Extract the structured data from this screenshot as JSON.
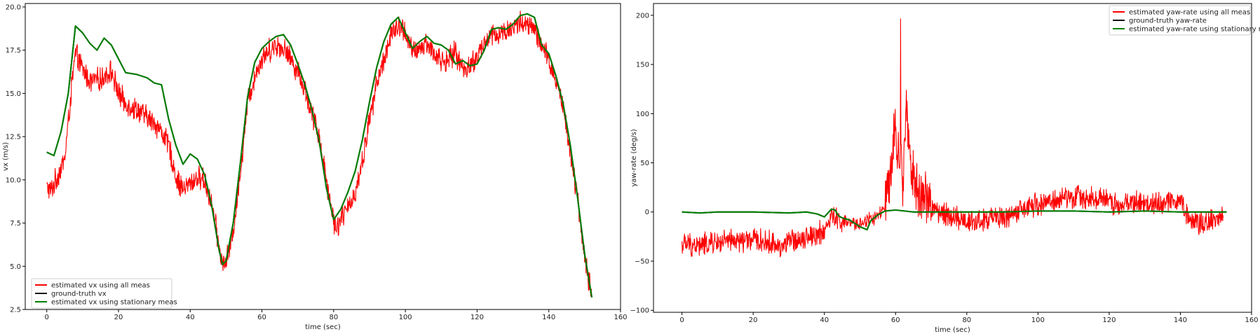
{
  "chart_data": [
    {
      "type": "line",
      "xlabel": "time (sec)",
      "ylabel": "vx (m/s)",
      "xlim": [
        -6,
        160
      ],
      "ylim": [
        2.5,
        20.2
      ],
      "xticks": [
        0,
        20,
        40,
        60,
        80,
        100,
        120,
        140,
        160
      ],
      "yticks": [
        2.5,
        5.0,
        7.5,
        10.0,
        12.5,
        15.0,
        17.5,
        20.0
      ],
      "ytick_labels": [
        "2.5",
        "5.0",
        "7.5",
        "10.0",
        "12.5",
        "15.0",
        "17.5",
        "20.0"
      ],
      "grid": false,
      "legend_position": "lower-left",
      "series": [
        {
          "name": "estimated vx using all meas",
          "color": "#ff0000",
          "noise": 0.8,
          "x": [
            0,
            1,
            3,
            5,
            7,
            8,
            10,
            12,
            15,
            18,
            20,
            22,
            25,
            28,
            30,
            32,
            34,
            36,
            38,
            40,
            42,
            44,
            46,
            48,
            49,
            50,
            52,
            54,
            56,
            58,
            60,
            62,
            64,
            66,
            68,
            70,
            72,
            74,
            76,
            78,
            80,
            81,
            82,
            84,
            86,
            88,
            90,
            92,
            94,
            96,
            98,
            100,
            102,
            104,
            106,
            108,
            110,
            112,
            114,
            116,
            118,
            120,
            122,
            124,
            126,
            128,
            130,
            132,
            134,
            136,
            138,
            140,
            142,
            144,
            146,
            148,
            150,
            152
          ],
          "y": [
            9.6,
            9.3,
            10.2,
            11.2,
            15.5,
            17.3,
            16.4,
            15.7,
            15.8,
            16.3,
            15.0,
            14.4,
            14.1,
            13.6,
            13.3,
            12.8,
            12.0,
            10.2,
            9.4,
            9.8,
            10.1,
            10.0,
            8.6,
            6.2,
            5.1,
            5.2,
            7.0,
            10.5,
            14.5,
            16.0,
            17.0,
            17.5,
            17.8,
            17.6,
            17.0,
            16.3,
            15.2,
            13.8,
            12.5,
            10.0,
            7.6,
            7.3,
            7.8,
            8.3,
            9.3,
            11.0,
            13.5,
            15.5,
            17.0,
            18.4,
            18.8,
            18.6,
            17.3,
            17.6,
            17.9,
            17.3,
            16.9,
            16.9,
            17.4,
            16.4,
            16.6,
            17.1,
            17.9,
            18.4,
            18.4,
            18.6,
            18.8,
            19.1,
            18.9,
            18.7,
            17.7,
            16.9,
            15.8,
            14.2,
            11.8,
            8.9,
            5.5,
            3.2
          ]
        },
        {
          "name": "ground-truth vx",
          "color": "#111111",
          "noise": 0,
          "x": [
            0,
            2,
            4,
            6,
            8,
            10,
            12,
            14,
            16,
            18,
            20,
            22,
            25,
            28,
            30,
            32,
            34,
            36,
            38,
            40,
            42,
            44,
            46,
            48,
            49,
            50,
            52,
            54,
            56,
            58,
            60,
            62,
            64,
            66,
            68,
            70,
            72,
            74,
            76,
            78,
            80,
            82,
            84,
            86,
            88,
            90,
            92,
            94,
            96,
            98,
            100,
            102,
            104,
            106,
            108,
            110,
            112,
            114,
            116,
            118,
            120,
            122,
            124,
            126,
            128,
            130,
            132,
            134,
            136,
            138,
            140,
            142,
            144,
            146,
            148,
            150,
            152
          ],
          "y": [
            11.6,
            11.4,
            12.8,
            15.0,
            18.9,
            18.5,
            17.9,
            17.5,
            18.2,
            17.8,
            17.0,
            16.2,
            16.1,
            15.9,
            15.6,
            15.5,
            13.5,
            12.0,
            10.9,
            11.5,
            11.2,
            10.3,
            8.5,
            6.0,
            5.1,
            5.3,
            7.5,
            11.0,
            14.8,
            16.8,
            17.6,
            18.0,
            18.3,
            18.4,
            17.8,
            16.7,
            15.5,
            14.0,
            12.2,
            9.5,
            7.7,
            8.3,
            9.3,
            10.5,
            12.3,
            14.5,
            16.5,
            18.0,
            19.0,
            19.4,
            18.5,
            17.6,
            18.0,
            18.3,
            17.9,
            17.8,
            17.5,
            16.7,
            16.9,
            16.6,
            16.7,
            17.5,
            18.7,
            18.8,
            18.7,
            19.0,
            19.5,
            19.6,
            19.4,
            17.8,
            17.3,
            16.0,
            14.4,
            12.0,
            9.0,
            5.7,
            3.2
          ]
        },
        {
          "name": "estimated vx using stationary meas",
          "color": "#008000",
          "noise": 0,
          "x": [
            0,
            2,
            4,
            6,
            8,
            10,
            12,
            14,
            16,
            18,
            20,
            22,
            25,
            28,
            30,
            32,
            34,
            36,
            38,
            40,
            42,
            44,
            46,
            48,
            49,
            50,
            52,
            54,
            56,
            58,
            60,
            62,
            64,
            66,
            68,
            70,
            72,
            74,
            76,
            78,
            80,
            82,
            84,
            86,
            88,
            90,
            92,
            94,
            96,
            98,
            100,
            102,
            104,
            106,
            108,
            110,
            112,
            114,
            116,
            118,
            120,
            122,
            124,
            126,
            128,
            130,
            132,
            134,
            136,
            138,
            140,
            142,
            144,
            146,
            148,
            150,
            152
          ],
          "y": [
            11.6,
            11.4,
            12.8,
            15.0,
            18.9,
            18.5,
            17.9,
            17.5,
            18.2,
            17.8,
            17.0,
            16.2,
            16.1,
            15.9,
            15.6,
            15.5,
            13.5,
            12.0,
            10.9,
            11.5,
            11.2,
            10.3,
            8.5,
            6.0,
            5.1,
            5.3,
            7.5,
            11.0,
            14.8,
            16.8,
            17.6,
            18.0,
            18.3,
            18.4,
            17.8,
            16.7,
            15.5,
            14.0,
            12.2,
            9.5,
            7.7,
            8.3,
            9.3,
            10.5,
            12.3,
            14.5,
            16.5,
            18.0,
            19.0,
            19.4,
            18.5,
            17.6,
            18.0,
            18.3,
            17.9,
            17.8,
            17.5,
            16.7,
            16.9,
            16.6,
            16.7,
            17.5,
            18.7,
            18.8,
            18.7,
            19.0,
            19.5,
            19.6,
            19.4,
            17.8,
            17.3,
            16.0,
            14.4,
            12.0,
            9.0,
            5.7,
            3.2
          ]
        }
      ]
    },
    {
      "type": "line",
      "xlabel": "time (sec)",
      "ylabel": "yaw-rate (deg/s)",
      "xlim": [
        -8,
        160
      ],
      "ylim": [
        -102,
        212
      ],
      "xticks": [
        0,
        20,
        40,
        60,
        80,
        100,
        120,
        140,
        160
      ],
      "yticks": [
        -100,
        -50,
        0,
        50,
        100,
        150,
        200
      ],
      "ytick_labels": [
        "−100",
        "−50",
        "0",
        "50",
        "100",
        "150",
        "200"
      ],
      "grid": false,
      "legend_position": "upper-right",
      "series": [
        {
          "name": "estimated yaw-rate using all meas",
          "color": "#ff0000",
          "noise": 14,
          "x": [
            0,
            5,
            10,
            15,
            20,
            25,
            28,
            30,
            35,
            40,
            42,
            45,
            48,
            50,
            52,
            55,
            57,
            59,
            60,
            61,
            62,
            63,
            64,
            66,
            68,
            70,
            72,
            75,
            80,
            85,
            90,
            95,
            100,
            105,
            110,
            115,
            120,
            123,
            125,
            130,
            135,
            140,
            142,
            145,
            150,
            152
          ],
          "y": [
            -33,
            -34,
            -31,
            -30,
            -28,
            -32,
            -35,
            -30,
            -25,
            -20,
            -5,
            -10,
            -12,
            -12,
            -8,
            -5,
            5,
            40,
            95,
            60,
            25,
            110,
            45,
            20,
            15,
            5,
            0,
            -3,
            -10,
            -8,
            -5,
            0,
            8,
            12,
            15,
            15,
            12,
            5,
            10,
            8,
            10,
            12,
            -5,
            -10,
            -8,
            -3
          ]
        },
        {
          "name": "ground-truth yaw-rate",
          "color": "#111111",
          "noise": 0,
          "x": [
            0,
            5,
            10,
            20,
            30,
            35,
            38,
            40,
            42,
            43,
            44,
            45,
            47,
            50,
            52,
            53,
            55,
            57,
            60,
            65,
            70,
            80,
            90,
            100,
            110,
            120,
            130,
            140,
            150,
            153
          ],
          "y": [
            0,
            -1,
            0,
            0,
            -1,
            0,
            -2,
            -5,
            3,
            2,
            -4,
            -6,
            -8,
            -15,
            -18,
            -9,
            -3,
            1,
            2,
            0,
            0,
            0,
            0,
            1,
            1,
            0,
            1,
            0,
            0,
            0
          ]
        },
        {
          "name": "estimated yaw-rate using stationary meas",
          "color": "#008000",
          "noise": 0,
          "x": [
            0,
            5,
            10,
            20,
            30,
            35,
            38,
            40,
            42,
            43,
            44,
            45,
            47,
            50,
            52,
            53,
            55,
            57,
            60,
            65,
            70,
            80,
            90,
            100,
            110,
            120,
            130,
            140,
            150,
            153
          ],
          "y": [
            0,
            -1,
            0,
            0,
            -1,
            0,
            -2,
            -5,
            3,
            2,
            -4,
            -6,
            -8,
            -15,
            -18,
            -9,
            -3,
            1,
            2,
            0,
            0,
            0,
            0,
            1,
            1,
            0,
            1,
            0,
            0,
            0
          ]
        }
      ]
    }
  ]
}
